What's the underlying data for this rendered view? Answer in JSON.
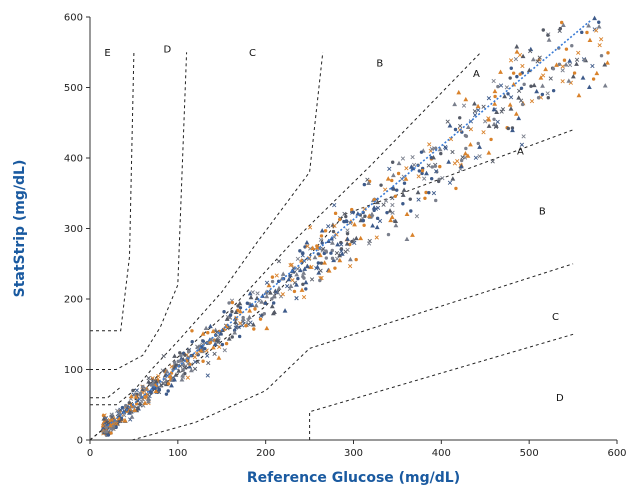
{
  "chart_data": {
    "type": "scatter",
    "title": "",
    "xlabel": "Reference Glucose (mg/dL)",
    "ylabel": "StatStrip (mg/dL)",
    "xlim": [
      0,
      600
    ],
    "ylim": [
      0,
      600
    ],
    "x_ticks": [
      0,
      100,
      200,
      300,
      400,
      500,
      600
    ],
    "y_ticks": [
      0,
      100,
      200,
      300,
      400,
      500,
      600
    ],
    "grid": false,
    "legend": "none",
    "colors": {
      "axis": "#333333",
      "title": "#1a5aa0",
      "identity_line": "#3a7bd5",
      "zone_line": "#222222",
      "points": [
        "#555a66",
        "#d9822b",
        "#3d5a8a",
        "#7a7f8c"
      ]
    },
    "identity_line": {
      "x": [
        20,
        570
      ],
      "y": [
        20,
        595
      ],
      "style": "dotted"
    },
    "zone_boundaries": [
      {
        "x": [
          0,
          35,
          48,
          120,
          200,
          290,
          550
        ],
        "y": [
          0,
          35,
          50,
          110,
          190,
          320,
          440
        ]
      },
      {
        "x": [
          0,
          40,
          80,
          160,
          230,
          320,
          445
        ],
        "y": [
          0,
          42,
          95,
          185,
          280,
          390,
          550
        ]
      },
      {
        "x": [
          0,
          48,
          48,
          120,
          120,
          200,
          250,
          550
        ],
        "y": [
          0,
          0,
          0,
          25,
          25,
          70,
          130,
          250
        ]
      },
      {
        "x": [
          0,
          30,
          50,
          70,
          100,
          150,
          190,
          250,
          265
        ],
        "y": [
          50,
          50,
          70,
          100,
          140,
          210,
          280,
          380,
          550
        ]
      },
      {
        "x": [
          0,
          30,
          60,
          80,
          100,
          110
        ],
        "y": [
          100,
          100,
          120,
          160,
          220,
          550
        ]
      },
      {
        "x": [
          250,
          250,
          550
        ],
        "y": [
          0,
          40,
          150
        ]
      },
      {
        "x": [
          0,
          35,
          35,
          45,
          50
        ],
        "y": [
          155,
          155,
          155,
          260,
          550
        ]
      },
      {
        "x": [
          0,
          20,
          35
        ],
        "y": [
          60,
          60,
          75
        ]
      }
    ],
    "zone_labels": [
      {
        "text": "E",
        "x": 20,
        "y": 545
      },
      {
        "text": "D",
        "x": 88,
        "y": 550
      },
      {
        "text": "C",
        "x": 185,
        "y": 545
      },
      {
        "text": "B",
        "x": 330,
        "y": 530
      },
      {
        "text": "A",
        "x": 440,
        "y": 515
      },
      {
        "text": "A",
        "x": 490,
        "y": 405
      },
      {
        "text": "B",
        "x": 515,
        "y": 320
      },
      {
        "text": "C",
        "x": 530,
        "y": 170
      },
      {
        "text": "D",
        "x": 535,
        "y": 55
      }
    ],
    "scatter_seed": 7,
    "scatter_count": 900,
    "scatter_model": {
      "x_range": [
        15,
        590
      ],
      "slope": 1.0,
      "spread": 0.06
    }
  }
}
